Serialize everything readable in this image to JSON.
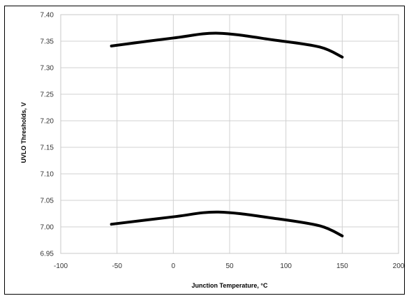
{
  "chart_data": {
    "type": "line",
    "title": "",
    "xlabel": "Junction Temperature, °C",
    "ylabel": "UVLO Thresholds, V",
    "xlim": [
      -100,
      200
    ],
    "ylim": [
      6.95,
      7.4
    ],
    "x_ticks": [
      "-100",
      "-50",
      "0",
      "50",
      "100",
      "150",
      "200"
    ],
    "y_ticks": [
      "6.95",
      "7.00",
      "7.05",
      "7.10",
      "7.15",
      "7.20",
      "7.25",
      "7.30",
      "7.35",
      "7.40"
    ],
    "grid": true,
    "legend": "none",
    "line_color": "#000000",
    "series": [
      {
        "x": [
          -55,
          0,
          40,
          90,
          130,
          150
        ],
        "y": [
          7.341,
          7.356,
          7.365,
          7.352,
          7.339,
          7.32
        ]
      },
      {
        "x": [
          -55,
          0,
          40,
          90,
          130,
          150
        ],
        "y": [
          7.005,
          7.019,
          7.028,
          7.016,
          7.002,
          6.983
        ]
      }
    ]
  }
}
